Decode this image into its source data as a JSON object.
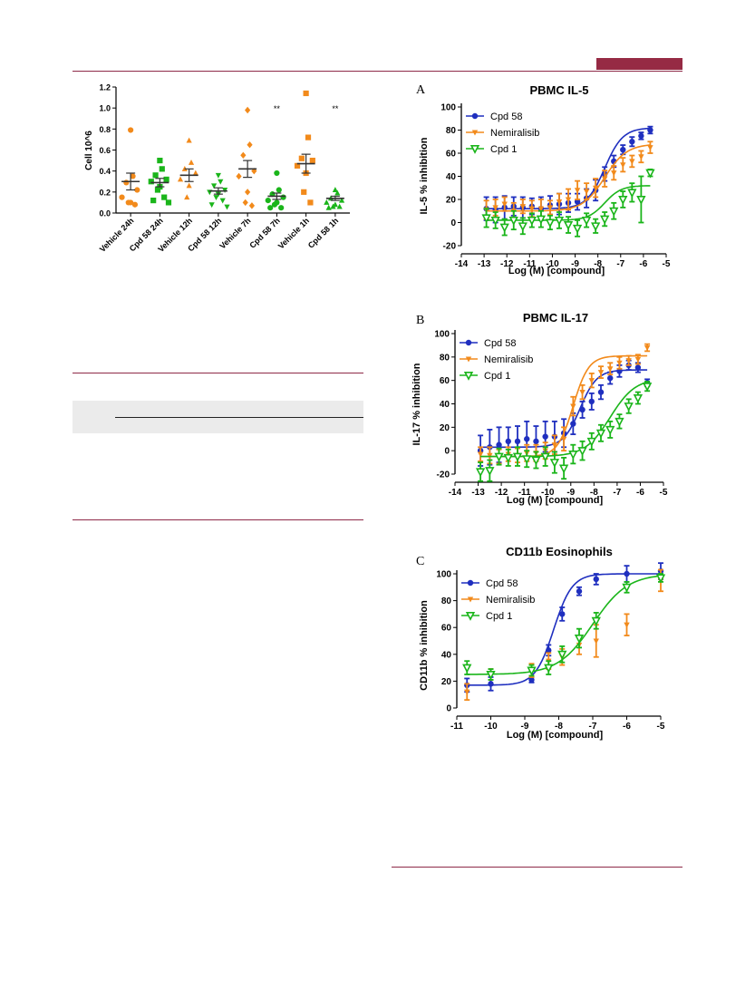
{
  "page": {
    "accent_color": "#962a44",
    "panel_letters": [
      "A",
      "B",
      "C"
    ]
  },
  "chart_data": [
    {
      "type": "scatter",
      "title": "",
      "xlabel": "",
      "ylabel": "Cell 10^6",
      "ylim": [
        0.0,
        1.2
      ],
      "yticks": [
        "0.0",
        "0.2",
        "0.4",
        "0.6",
        "0.8",
        "1.0",
        "1.2"
      ],
      "categories": [
        "Vehicle 24h",
        "Cpd 58 24h",
        "Vehicle 12h",
        "Cpd 58 12h",
        "Vehicle 7h",
        "Cpd 58 7h",
        "Vehicle 1h",
        "Cpd 58 1h"
      ],
      "colors": [
        "#f28a1b",
        "#1ab51a",
        "#f28a1b",
        "#1ab51a",
        "#f28a1b",
        "#1ab51a",
        "#f28a1b",
        "#1ab51a"
      ],
      "markers": [
        "circle",
        "square",
        "triangle",
        "tri-down",
        "diamond",
        "circle",
        "square",
        "triangle"
      ],
      "points": [
        [
          0.79,
          0.35,
          0.29,
          0.22,
          0.15,
          0.1,
          0.1,
          0.08
        ],
        [
          0.5,
          0.42,
          0.36,
          0.32,
          0.3,
          0.25,
          0.22,
          0.15,
          0.12,
          0.1
        ],
        [
          0.69,
          0.48,
          0.42,
          0.38,
          0.32,
          0.26,
          0.15
        ],
        [
          0.36,
          0.3,
          0.26,
          0.22,
          0.2,
          0.18,
          0.15,
          0.12,
          0.08,
          0.06
        ],
        [
          0.98,
          0.65,
          0.55,
          0.4,
          0.35,
          0.2,
          0.1,
          0.07
        ],
        [
          0.38,
          0.22,
          0.18,
          0.15,
          0.12,
          0.1,
          0.08,
          0.05,
          0.05
        ],
        [
          1.14,
          0.72,
          0.52,
          0.5,
          0.45,
          0.38,
          0.2,
          0.1
        ],
        [
          0.22,
          0.19,
          0.14,
          0.12,
          0.1,
          0.08,
          0.06,
          0.06,
          0.05
        ]
      ],
      "means": [
        0.3,
        0.29,
        0.36,
        0.21,
        0.42,
        0.16,
        0.47,
        0.14
      ],
      "sem": [
        0.08,
        0.04,
        0.06,
        0.03,
        0.08,
        0.03,
        0.09,
        0.02
      ],
      "annotations": [
        {
          "category": "Cpd 58 7h",
          "text": "**"
        },
        {
          "category": "Cpd 58 1h",
          "text": "**"
        }
      ]
    },
    {
      "type": "line",
      "panel": "A",
      "title": "PBMC IL-5",
      "xlabel": "Log (M) [compound]",
      "ylabel": "IL-5 % inhibition",
      "xlim": [
        -14,
        -5
      ],
      "ylim": [
        -20,
        100
      ],
      "xticks": [
        "-14",
        "-13",
        "-12",
        "-11",
        "-10",
        "-9",
        "-8",
        "-7",
        "-6",
        "-5"
      ],
      "yticks": [
        "-20",
        "0",
        "20",
        "40",
        "60",
        "80",
        "100"
      ],
      "legend_position": "top-left",
      "series": [
        {
          "name": "Cpd 58",
          "color": "#1f2fbf",
          "marker": "circle",
          "fit": {
            "bottom": 12,
            "top": 82,
            "logec50": -7.7,
            "hill": 1.1
          },
          "x": [
            -12.9,
            -12.5,
            -12.1,
            -11.7,
            -11.3,
            -10.9,
            -10.5,
            -10.1,
            -9.7,
            -9.3,
            -8.9,
            -8.5,
            -8.1,
            -7.7,
            -7.3,
            -6.9,
            -6.5,
            -6.1,
            -5.7
          ],
          "y": [
            12,
            11,
            13,
            14,
            13,
            14,
            12,
            15,
            16,
            17,
            18,
            21,
            28,
            42,
            53,
            63,
            70,
            75,
            80
          ],
          "err": [
            10,
            11,
            10,
            8,
            9,
            7,
            10,
            8,
            9,
            8,
            7,
            8,
            9,
            6,
            5,
            4,
            4,
            3,
            3
          ]
        },
        {
          "name": "Nemiralisib",
          "color": "#f28a1b",
          "marker": "tri-down",
          "fit": {
            "bottom": 10,
            "top": 68,
            "logec50": -7.7,
            "hill": 0.9
          },
          "x": [
            -12.9,
            -12.5,
            -12.1,
            -11.7,
            -11.3,
            -10.9,
            -10.5,
            -10.1,
            -9.7,
            -9.3,
            -8.9,
            -8.5,
            -8.1,
            -7.7,
            -7.3,
            -6.9,
            -6.5,
            -6.1,
            -5.7
          ],
          "y": [
            11,
            13,
            16,
            10,
            14,
            12,
            12,
            13,
            18,
            20,
            28,
            27,
            30,
            38,
            43,
            50,
            53,
            57,
            65
          ],
          "err": [
            8,
            7,
            6,
            7,
            6,
            7,
            8,
            6,
            7,
            9,
            8,
            7,
            8,
            7,
            6,
            6,
            5,
            5,
            5
          ]
        },
        {
          "name": "Cpd 1",
          "color": "#1ab51a",
          "marker": "tri-down-open",
          "fit": {
            "bottom": 2,
            "top": 32,
            "logec50": -7.7,
            "hill": 1.2
          },
          "x": [
            -12.9,
            -12.5,
            -12.1,
            -11.7,
            -11.3,
            -10.9,
            -10.5,
            -10.1,
            -9.7,
            -9.3,
            -8.9,
            -8.5,
            -8.1,
            -7.7,
            -7.3,
            -6.9,
            -6.5,
            -6.1,
            -5.7
          ],
          "y": [
            4,
            2,
            -4,
            2,
            -3,
            2,
            3,
            0,
            2,
            -2,
            -5,
            2,
            -3,
            3,
            10,
            20,
            26,
            20,
            43
          ],
          "err": [
            8,
            7,
            7,
            8,
            7,
            6,
            7,
            6,
            7,
            7,
            7,
            6,
            6,
            6,
            7,
            7,
            8,
            20,
            3
          ]
        }
      ]
    },
    {
      "type": "line",
      "panel": "B",
      "title": "PBMC IL-17",
      "xlabel": "Log (M) [compound]",
      "ylabel": "IL-17 % inhibition",
      "xlim": [
        -14,
        -5
      ],
      "ylim": [
        -20,
        100
      ],
      "xticks": [
        "-14",
        "-13",
        "-12",
        "-11",
        "-10",
        "-9",
        "-8",
        "-7",
        "-6",
        "-5"
      ],
      "yticks": [
        "-20",
        "0",
        "20",
        "40",
        "60",
        "80",
        "100"
      ],
      "legend_position": "top-left",
      "series": [
        {
          "name": "Cpd 58",
          "color": "#1f2fbf",
          "marker": "circle",
          "fit": {
            "bottom": 3,
            "top": 69,
            "logec50": -8.6,
            "hill": 1.2
          },
          "x": [
            -12.9,
            -12.5,
            -12.1,
            -11.7,
            -11.3,
            -10.9,
            -10.5,
            -10.1,
            -9.7,
            -9.3,
            -8.9,
            -8.5,
            -8.1,
            -7.7,
            -7.3,
            -6.9,
            -6.5,
            -6.1,
            -5.7
          ],
          "y": [
            0,
            3,
            5,
            8,
            8,
            10,
            8,
            12,
            12,
            15,
            23,
            35,
            42,
            50,
            62,
            68,
            73,
            71,
            58
          ],
          "err": [
            13,
            15,
            15,
            12,
            13,
            15,
            13,
            13,
            13,
            12,
            9,
            7,
            7,
            6,
            5,
            5,
            4,
            4,
            3
          ]
        },
        {
          "name": "Nemiralisib",
          "color": "#f28a1b",
          "marker": "tri-down",
          "fit": {
            "bottom": -5,
            "top": 81,
            "logec50": -8.9,
            "hill": 1.3
          },
          "x": [
            -12.9,
            -12.5,
            -12.1,
            -11.7,
            -11.3,
            -10.9,
            -10.5,
            -10.1,
            -9.7,
            -9.3,
            -8.9,
            -8.5,
            -8.1,
            -7.7,
            -7.3,
            -6.9,
            -6.5,
            -6.1,
            -5.7
          ],
          "y": [
            -3,
            -4,
            -5,
            -3,
            -4,
            -2,
            -2,
            0,
            5,
            10,
            38,
            50,
            60,
            67,
            70,
            75,
            77,
            78,
            88
          ],
          "err": [
            6,
            7,
            6,
            6,
            6,
            7,
            7,
            7,
            8,
            10,
            8,
            6,
            6,
            5,
            5,
            5,
            4,
            4,
            3
          ]
        },
        {
          "name": "Cpd 1",
          "color": "#1ab51a",
          "marker": "tri-down-open",
          "fit": {
            "bottom": -5,
            "top": 62,
            "logec50": -7.3,
            "hill": 0.8
          },
          "x": [
            -12.9,
            -12.5,
            -12.1,
            -11.7,
            -11.3,
            -10.9,
            -10.5,
            -10.1,
            -9.7,
            -9.3,
            -8.9,
            -8.5,
            -8.1,
            -7.7,
            -7.3,
            -6.9,
            -6.5,
            -6.1,
            -5.7
          ],
          "y": [
            -18,
            -17,
            -5,
            -6,
            -5,
            -7,
            -8,
            -5,
            -10,
            -15,
            -3,
            0,
            8,
            15,
            18,
            25,
            38,
            45,
            55
          ],
          "err": [
            8,
            9,
            7,
            7,
            8,
            7,
            7,
            8,
            9,
            9,
            8,
            8,
            7,
            7,
            7,
            6,
            6,
            5,
            4
          ]
        }
      ]
    },
    {
      "type": "line",
      "panel": "C",
      "title": "CD11b Eosinophils",
      "xlabel": "Log (M) [compound]",
      "ylabel": "CD11b % inhibition",
      "xlim": [
        -11,
        -5
      ],
      "ylim": [
        0,
        100
      ],
      "xticks": [
        "-11",
        "-10",
        "-9",
        "-8",
        "-7",
        "-6",
        "-5"
      ],
      "yticks": [
        "0",
        "20",
        "40",
        "60",
        "80",
        "100"
      ],
      "legend_position": "top-left",
      "series": [
        {
          "name": "Cpd 58",
          "color": "#1f2fbf",
          "marker": "circle",
          "fit": {
            "bottom": 17,
            "top": 100,
            "logec50": -8.15,
            "hill": 1.6
          },
          "x": [
            -10.7,
            -10.0,
            -8.8,
            -8.3,
            -7.9,
            -7.4,
            -6.9,
            -6.0,
            -5.0
          ],
          "y": [
            17,
            18,
            21,
            43,
            70,
            87,
            96,
            100,
            102
          ],
          "err": [
            5,
            5,
            2,
            4,
            5,
            3,
            4,
            6,
            6
          ]
        },
        {
          "name": "Nemiralisib",
          "color": "#f28a1b",
          "marker": "tri-down",
          "fit": null,
          "x": [
            -10.7,
            -10.0,
            -8.8,
            -8.3,
            -7.9,
            -7.4,
            -6.9,
            -6.0,
            -5.0
          ],
          "y": [
            12,
            25,
            28,
            35,
            38,
            47,
            50,
            62,
            95
          ],
          "err": [
            6,
            4,
            5,
            6,
            6,
            7,
            12,
            8,
            8
          ]
        },
        {
          "name": "Cpd 1",
          "color": "#1ab51a",
          "marker": "tri-down-open",
          "fit": {
            "bottom": 25,
            "top": 100,
            "logec50": -7.0,
            "hill": 0.85
          },
          "x": [
            -10.7,
            -10.0,
            -8.8,
            -8.3,
            -7.9,
            -7.4,
            -6.9,
            -6.0,
            -5.0
          ],
          "y": [
            30,
            25,
            28,
            30,
            40,
            52,
            65,
            90,
            97
          ],
          "err": [
            5,
            4,
            4,
            5,
            6,
            7,
            6,
            4,
            3
          ]
        }
      ]
    }
  ]
}
